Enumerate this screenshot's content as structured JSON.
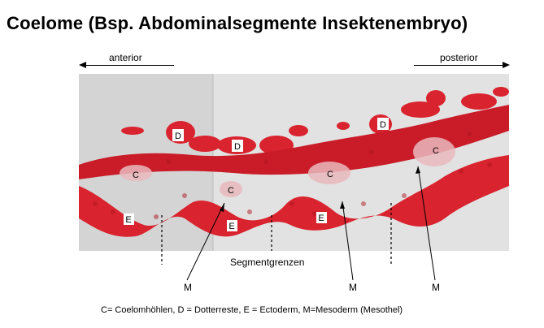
{
  "title": "Coelome (Bsp. Abdominalsegmente Insektenembryo)",
  "direction": {
    "left": "anterior",
    "right": "posterior"
  },
  "labels": {
    "D": "D",
    "C": "C",
    "E": "E",
    "M": "M"
  },
  "segment_label": "Segmentgrenzen",
  "legend": "C= Coelomhöhlen, D = Dotterreste, E = Ectoderm, M=Mesoderm (Mesothel)",
  "colors": {
    "tissue": "#d9232e",
    "tissue_dark": "#b01620",
    "background": "#dcdcdc"
  }
}
